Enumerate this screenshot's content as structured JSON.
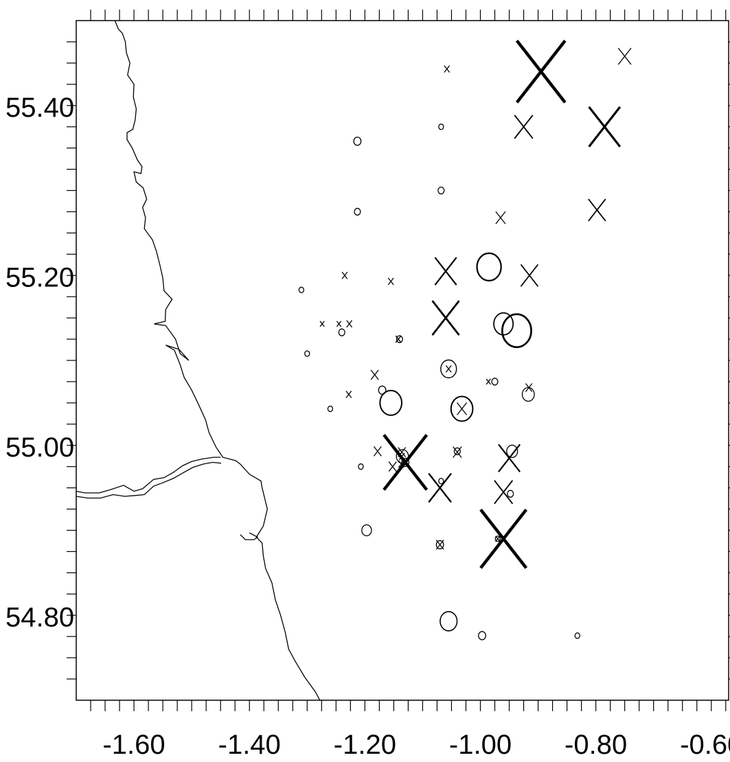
{
  "chart_data": {
    "type": "scatter",
    "x_axis": {
      "min": -1.7,
      "max": -0.57,
      "tick_step": 0.025,
      "labels": [
        {
          "value": -1.6,
          "text": "-1.60"
        },
        {
          "value": -1.4,
          "text": "-1.40"
        },
        {
          "value": -1.2,
          "text": "-1.20"
        },
        {
          "value": -1.0,
          "text": "-1.00"
        },
        {
          "value": -0.8,
          "text": "-0.80"
        },
        {
          "value": -0.6,
          "text": "-0.60"
        }
      ]
    },
    "y_axis": {
      "min": 54.7,
      "max": 55.5,
      "tick_step": 0.025,
      "labels": [
        {
          "value": 55.4,
          "text": "55.40"
        },
        {
          "value": 55.2,
          "text": "55.20"
        },
        {
          "value": 55.0,
          "text": "55.00"
        },
        {
          "value": 54.8,
          "text": "54.80"
        }
      ]
    },
    "coastline": [
      [
        -1.633,
        55.5
      ],
      [
        -1.627,
        55.49
      ],
      [
        -1.62,
        55.485
      ],
      [
        -1.615,
        55.475
      ],
      [
        -1.613,
        55.462
      ],
      [
        -1.607,
        55.45
      ],
      [
        -1.611,
        55.436
      ],
      [
        -1.6,
        55.425
      ],
      [
        -1.601,
        55.41
      ],
      [
        -1.596,
        55.396
      ],
      [
        -1.598,
        55.383
      ],
      [
        -1.602,
        55.372
      ],
      [
        -1.612,
        55.368
      ],
      [
        -1.612,
        55.36
      ],
      [
        -1.603,
        55.35
      ],
      [
        -1.594,
        55.336
      ],
      [
        -1.586,
        55.328
      ],
      [
        -1.588,
        55.32
      ],
      [
        -1.6,
        55.322
      ],
      [
        -1.596,
        55.31
      ],
      [
        -1.584,
        55.303
      ],
      [
        -1.578,
        55.29
      ],
      [
        -1.585,
        55.28
      ],
      [
        -1.58,
        55.268
      ],
      [
        -1.582,
        55.255
      ],
      [
        -1.568,
        55.242
      ],
      [
        -1.561,
        55.228
      ],
      [
        -1.555,
        55.212
      ],
      [
        -1.55,
        55.197
      ],
      [
        -1.548,
        55.182
      ],
      [
        -1.534,
        55.172
      ],
      [
        -1.545,
        55.16
      ],
      [
        -1.546,
        55.146
      ],
      [
        -1.565,
        55.143
      ],
      [
        -1.545,
        55.141
      ],
      [
        -1.528,
        55.125
      ],
      [
        -1.52,
        55.108
      ],
      [
        -1.505,
        55.1
      ],
      [
        -1.522,
        55.113
      ],
      [
        -1.545,
        55.118
      ],
      [
        -1.53,
        55.112
      ],
      [
        -1.52,
        55.095
      ],
      [
        -1.513,
        55.08
      ],
      [
        -1.5,
        55.065
      ],
      [
        -1.488,
        55.048
      ],
      [
        -1.476,
        55.03
      ],
      [
        -1.47,
        55.015
      ],
      [
        -1.458,
        54.998
      ],
      [
        -1.446,
        54.986
      ],
      [
        -1.424,
        54.982
      ],
      [
        -1.416,
        54.978
      ],
      [
        -1.4,
        54.966
      ],
      [
        -1.38,
        54.958
      ],
      [
        -1.378,
        54.95
      ],
      [
        -1.369,
        54.925
      ],
      [
        -1.376,
        54.905
      ],
      [
        -1.388,
        54.892
      ],
      [
        -1.378,
        54.885
      ],
      [
        -1.376,
        54.87
      ],
      [
        -1.372,
        54.855
      ],
      [
        -1.361,
        54.838
      ],
      [
        -1.355,
        54.818
      ],
      [
        -1.346,
        54.8
      ],
      [
        -1.338,
        54.78
      ],
      [
        -1.332,
        54.76
      ],
      [
        -1.32,
        54.745
      ],
      [
        -1.304,
        54.727
      ],
      [
        -1.286,
        54.71
      ],
      [
        -1.278,
        54.7
      ]
    ],
    "river_north_bank": [
      [
        -1.7,
        54.946
      ],
      [
        -1.685,
        54.944
      ],
      [
        -1.66,
        54.944
      ],
      [
        -1.64,
        54.948
      ],
      [
        -1.618,
        54.953
      ],
      [
        -1.6,
        54.946
      ],
      [
        -1.585,
        54.949
      ],
      [
        -1.566,
        54.96
      ],
      [
        -1.548,
        54.962
      ],
      [
        -1.532,
        54.968
      ],
      [
        -1.516,
        54.976
      ],
      [
        -1.5,
        54.981
      ],
      [
        -1.482,
        54.984
      ],
      [
        -1.462,
        54.986
      ],
      [
        -1.45,
        54.986
      ]
    ],
    "river_south_bank": [
      [
        -1.7,
        54.94
      ],
      [
        -1.68,
        54.938
      ],
      [
        -1.658,
        54.938
      ],
      [
        -1.636,
        54.942
      ],
      [
        -1.616,
        54.94
      ],
      [
        -1.598,
        54.941
      ],
      [
        -1.582,
        54.942
      ],
      [
        -1.566,
        54.952
      ],
      [
        -1.55,
        54.956
      ],
      [
        -1.532,
        54.961
      ],
      [
        -1.514,
        54.968
      ],
      [
        -1.498,
        54.974
      ],
      [
        -1.48,
        54.978
      ],
      [
        -1.464,
        54.98
      ],
      [
        -1.449,
        54.979
      ]
    ],
    "estuary_spit": [
      [
        -1.416,
        54.895
      ],
      [
        -1.407,
        54.889
      ],
      [
        -1.392,
        54.889
      ],
      [
        -1.386,
        54.892
      ],
      [
        -1.4,
        54.897
      ]
    ],
    "markers_x": [
      [
        -0.895,
        55.44,
        90
      ],
      [
        -0.75,
        55.458,
        24
      ],
      [
        -0.925,
        55.375,
        34
      ],
      [
        -0.785,
        55.375,
        58
      ],
      [
        -1.058,
        55.443,
        10
      ],
      [
        -0.798,
        55.277,
        32
      ],
      [
        -0.965,
        55.268,
        18
      ],
      [
        -1.06,
        55.205,
        40
      ],
      [
        -0.915,
        55.2,
        32
      ],
      [
        -1.06,
        55.15,
        50
      ],
      [
        -1.235,
        55.2,
        10
      ],
      [
        -1.155,
        55.193,
        10
      ],
      [
        -1.274,
        55.143,
        8
      ],
      [
        -1.245,
        55.143,
        8
      ],
      [
        -1.227,
        55.143,
        10
      ],
      [
        -1.183,
        55.083,
        14
      ],
      [
        -1.228,
        55.06,
        10
      ],
      [
        -1.142,
        55.125,
        10
      ],
      [
        -1.055,
        55.09,
        10
      ],
      [
        -1.032,
        55.043,
        18
      ],
      [
        -0.986,
        55.075,
        8
      ],
      [
        -0.916,
        55.068,
        12
      ],
      [
        -1.13,
        54.98,
        80
      ],
      [
        -1.178,
        54.993,
        14
      ],
      [
        -1.152,
        54.975,
        14
      ],
      [
        -1.136,
        54.992,
        14
      ],
      [
        -1.04,
        54.992,
        16
      ],
      [
        -0.95,
        54.985,
        40
      ],
      [
        -0.96,
        54.945,
        34
      ],
      [
        -1.07,
        54.95,
        42
      ],
      [
        -0.96,
        54.89,
        85
      ],
      [
        -1.07,
        54.883,
        14
      ],
      [
        -0.97,
        54.89,
        8
      ],
      [
        -1.137,
        54.978,
        10
      ],
      [
        -1.136,
        54.987,
        10
      ]
    ],
    "markers_o": [
      [
        -1.31,
        55.183,
        8
      ],
      [
        -1.3,
        55.108,
        8
      ],
      [
        -1.213,
        55.358,
        12
      ],
      [
        -1.213,
        55.275,
        10
      ],
      [
        -1.068,
        55.375,
        8
      ],
      [
        -1.068,
        55.3,
        10
      ],
      [
        -1.24,
        55.133,
        10
      ],
      [
        -1.26,
        55.043,
        8
      ],
      [
        -1.207,
        54.975,
        8
      ],
      [
        -0.985,
        55.21,
        40
      ],
      [
        -0.96,
        55.143,
        32
      ],
      [
        -0.937,
        55.135,
        48
      ],
      [
        -1.14,
        55.125,
        10
      ],
      [
        -1.055,
        55.09,
        26
      ],
      [
        -1.032,
        55.043,
        36
      ],
      [
        -1.155,
        55.05,
        36
      ],
      [
        -1.17,
        55.065,
        12
      ],
      [
        -0.975,
        55.075,
        10
      ],
      [
        -0.917,
        55.06,
        20
      ],
      [
        -0.945,
        54.993,
        18
      ],
      [
        -1.04,
        54.993,
        10
      ],
      [
        -1.068,
        54.958,
        8
      ],
      [
        -1.135,
        54.987,
        20
      ],
      [
        -1.13,
        54.98,
        12
      ],
      [
        -0.948,
        54.943,
        10
      ],
      [
        -1.197,
        54.9,
        16
      ],
      [
        -1.07,
        54.883,
        12
      ],
      [
        -0.97,
        54.89,
        8
      ],
      [
        -1.055,
        54.793,
        28
      ],
      [
        -0.997,
        54.776,
        12
      ],
      [
        -0.832,
        54.776,
        8
      ]
    ]
  }
}
